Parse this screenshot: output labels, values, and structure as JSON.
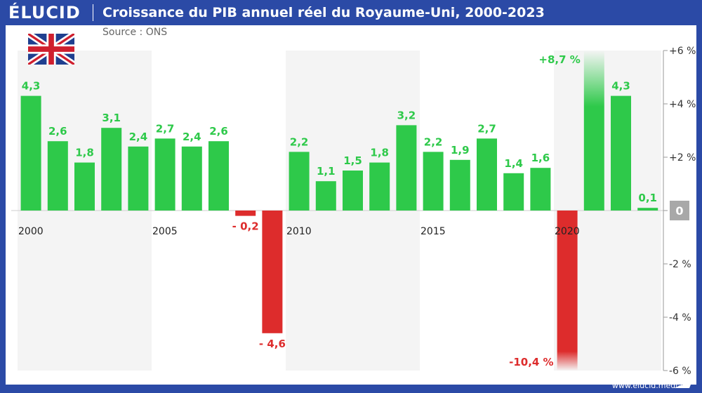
{
  "header": {
    "logo": "ÉLUCID",
    "title": "Croissance du PIB annuel réel du Royaume-Uni, 2000-2023",
    "source": "Source : ONS"
  },
  "footer": {
    "url": "www.elucid.media"
  },
  "colors": {
    "positive": "#2ec94a",
    "negative": "#dd2c2c",
    "brand": "#2b4aa6",
    "zero_badge": "#a8a8a8"
  },
  "icons": {
    "flag": "uk-flag-icon"
  },
  "chart_data": {
    "type": "bar",
    "title": "Croissance du PIB annuel réel du Royaume-Uni, 2000-2023",
    "categories": [
      "2000",
      "2001",
      "2002",
      "2003",
      "2004",
      "2005",
      "2006",
      "2007",
      "2008",
      "2009",
      "2010",
      "2011",
      "2012",
      "2013",
      "2014",
      "2015",
      "2016",
      "2017",
      "2018",
      "2019",
      "2020",
      "2021",
      "2022",
      "2023"
    ],
    "values": [
      4.3,
      2.6,
      1.8,
      3.1,
      2.4,
      2.7,
      2.4,
      2.6,
      -0.2,
      -4.6,
      2.2,
      1.1,
      1.5,
      1.8,
      3.2,
      2.2,
      1.9,
      2.7,
      1.4,
      1.6,
      -10.4,
      8.7,
      4.3,
      0.1
    ],
    "data_labels": [
      "4,3",
      "2,6",
      "1,8",
      "3,1",
      "2,4",
      "2,7",
      "2,4",
      "2,6",
      "- 0,2",
      "- 4,6",
      "2,2",
      "1,1",
      "1,5",
      "1,8",
      "3,2",
      "2,2",
      "1,9",
      "2,7",
      "1,4",
      "1,6",
      "-10,4 %",
      "+8,7 %",
      "4,3",
      "0,1"
    ],
    "x_tick_labels": [
      {
        "year": "2000",
        "label": "2000"
      },
      {
        "year": "2005",
        "label": "2005"
      },
      {
        "year": "2010",
        "label": "2010"
      },
      {
        "year": "2015",
        "label": "2015"
      },
      {
        "year": "2020",
        "label": "2020"
      }
    ],
    "y_ticks": [
      {
        "value": 6,
        "label": "+6 %"
      },
      {
        "value": 4,
        "label": "+4 %"
      },
      {
        "value": 2,
        "label": "+2 %"
      },
      {
        "value": 0,
        "label": "0"
      },
      {
        "value": -2,
        "label": "-2 %"
      },
      {
        "value": -4,
        "label": "-4 %"
      },
      {
        "value": -6,
        "label": "-6 %"
      }
    ],
    "ylim": [
      -6,
      6
    ],
    "xlabel": "",
    "ylabel": "",
    "shaded_periods": [
      [
        "2000",
        "2004"
      ],
      [
        "2010",
        "2014"
      ],
      [
        "2020",
        "2023"
      ]
    ],
    "clipped_bars": [
      "2020",
      "2021"
    ],
    "legend": "none"
  }
}
